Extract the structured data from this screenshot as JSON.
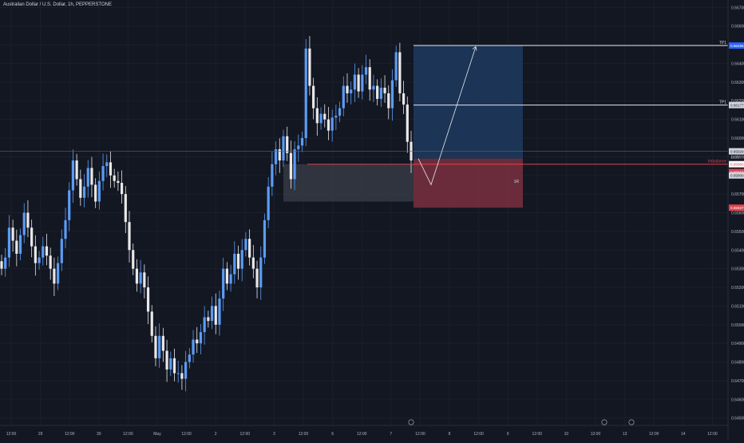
{
  "symbol_title": "Australian Dollar / U.S. Dollar, 1h, PEPPERSTONE",
  "colors": {
    "background": "#131722",
    "up": "#5b9cf6",
    "down": "#e8e8e8",
    "grid": "#1b1f2b",
    "axis_text": "#b2b5be",
    "target_zone": "#1e3a5f",
    "stop_zone": "#7a3040",
    "order_block": "#3b3f49",
    "imbalance_line": "#e0414e",
    "tp_line": "#e8e8e8"
  },
  "chart_data": {
    "type": "candlestick",
    "price_axis_ticks": [
      "0.66700",
      "0.66600",
      "0.66500",
      "0.66400",
      "0.66300",
      "0.66200",
      "0.66100",
      "0.66000",
      "0.65900",
      "0.65800",
      "0.65700",
      "0.65600",
      "0.65500",
      "0.65400",
      "0.65300",
      "0.65200",
      "0.65100",
      "0.65000",
      "0.64900",
      "0.64800",
      "0.64700",
      "0.64600",
      "0.64500"
    ],
    "price_range": [
      0.6446,
      0.6674
    ],
    "time_axis_labels": [
      "12:00",
      "29",
      "12:00",
      "30",
      "12:00",
      "May",
      "12:00",
      "2",
      "12:00",
      "3",
      "12:00",
      "6",
      "12:00",
      "7",
      "12:00",
      "8",
      "12:00",
      "9",
      "12:00",
      "10",
      "12:00",
      "13",
      "12:00",
      "14",
      "12:00"
    ],
    "closes": [
      0.653,
      0.6536,
      0.6552,
      0.6545,
      0.6538,
      0.6548,
      0.656,
      0.6552,
      0.6542,
      0.6533,
      0.6536,
      0.6542,
      0.6537,
      0.653,
      0.6522,
      0.6533,
      0.6546,
      0.6556,
      0.6572,
      0.6588,
      0.6578,
      0.6568,
      0.6574,
      0.6584,
      0.6575,
      0.6566,
      0.6577,
      0.6585,
      0.6587,
      0.658,
      0.6577,
      0.6576,
      0.657,
      0.6555,
      0.654,
      0.653,
      0.6522,
      0.6528,
      0.652,
      0.6507,
      0.6494,
      0.6482,
      0.6494,
      0.6486,
      0.6476,
      0.6482,
      0.6474,
      0.6474,
      0.6471,
      0.648,
      0.6484,
      0.6492,
      0.649,
      0.6496,
      0.6504,
      0.6502,
      0.651,
      0.65,
      0.6514,
      0.653,
      0.6522,
      0.6527,
      0.6538,
      0.653,
      0.654,
      0.6546,
      0.6536,
      0.653,
      0.652,
      0.6536,
      0.6556,
      0.6574,
      0.6586,
      0.6594,
      0.6588,
      0.6601,
      0.6592,
      0.6578,
      0.6594,
      0.6596,
      0.66,
      0.6648,
      0.6628,
      0.6616,
      0.6608,
      0.6613,
      0.661,
      0.6604,
      0.6611,
      0.6612,
      0.6616,
      0.6628,
      0.6624,
      0.6626,
      0.6634,
      0.6625,
      0.6634,
      0.6638,
      0.6626,
      0.6628,
      0.6621,
      0.6627,
      0.6624,
      0.6616,
      0.6631,
      0.6646,
      0.6624,
      0.6618,
      0.6598,
      0.6588
    ],
    "last_price": "0.65929",
    "countdown": "33:28",
    "annotations": {
      "tp2": {
        "label": "TP1",
        "price": 0.66496,
        "tag": "0.66496"
      },
      "tp1": {
        "label": "TP1",
        "price": 0.66177,
        "tag": "0.66177"
      },
      "imbalance": {
        "label": "Imbalance",
        "price": 0.6586,
        "tag": "0.65860"
      },
      "entry_tag": "0.65818",
      "entry_tag2": "0.65800",
      "stop": {
        "price": 0.65627,
        "tag": "0.65627"
      },
      "order_block": {
        "top": 0.6586,
        "bottom": 0.6566
      },
      "rr_label": "1R",
      "path": [
        0.6589,
        0.6575,
        0.6649
      ]
    },
    "grid": true
  }
}
